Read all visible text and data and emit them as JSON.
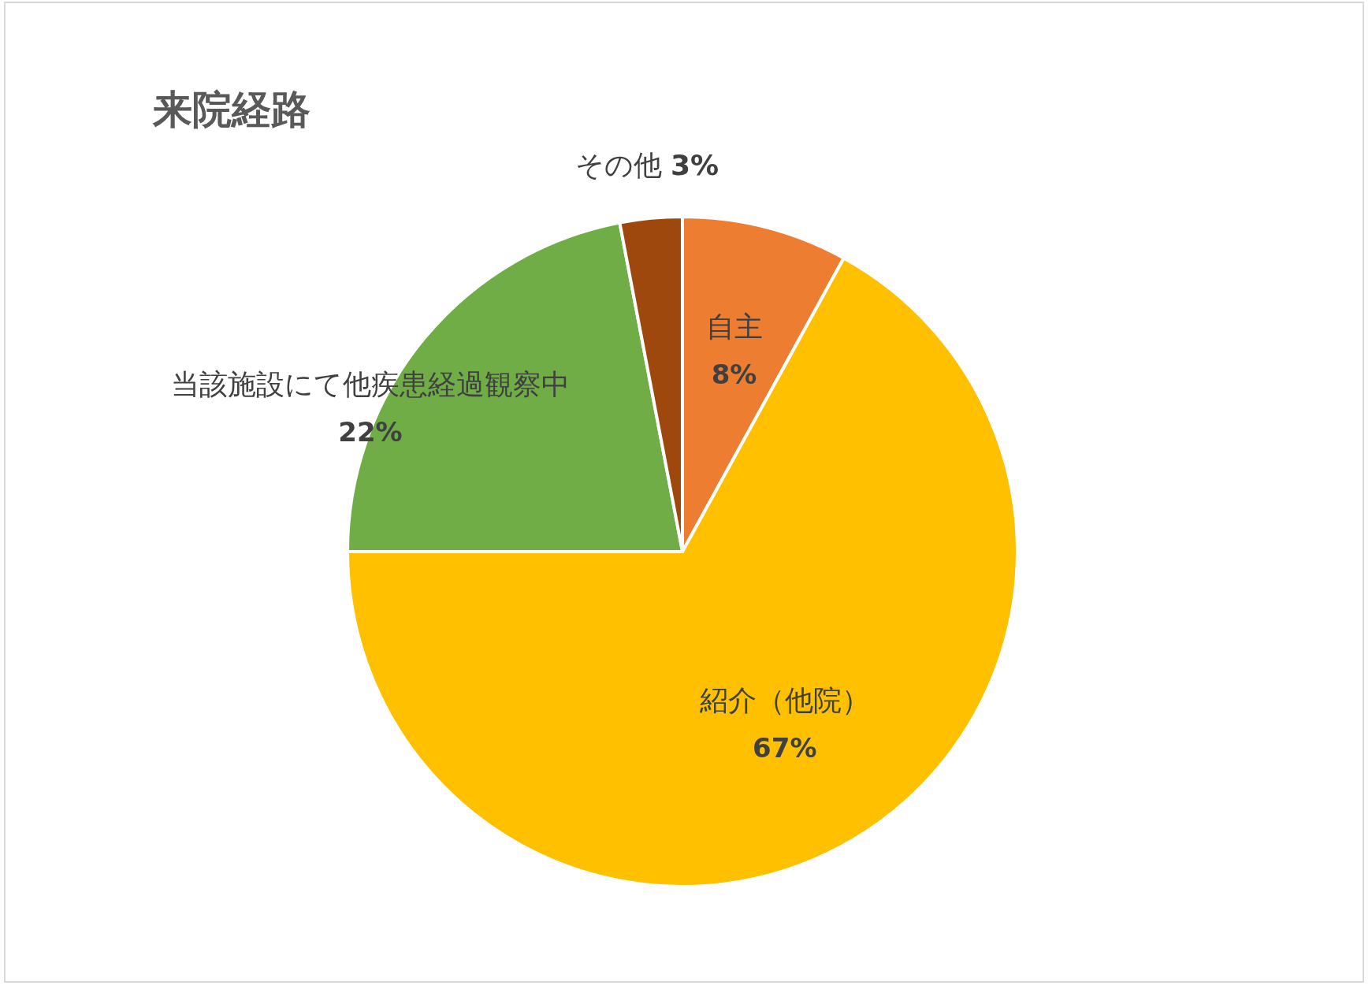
{
  "chart_data": {
    "type": "pie",
    "title": "来院経路",
    "categories": [
      "自主",
      "紹介（他院）",
      "当該施設にて他疾患経過観察中",
      "その他"
    ],
    "values": [
      8,
      67,
      22,
      3
    ],
    "colors": [
      "#ed7d31",
      "#ffc000",
      "#70ad47",
      "#9e480e"
    ],
    "value_labels": [
      "8%",
      "67%",
      "22%",
      "3%"
    ]
  }
}
